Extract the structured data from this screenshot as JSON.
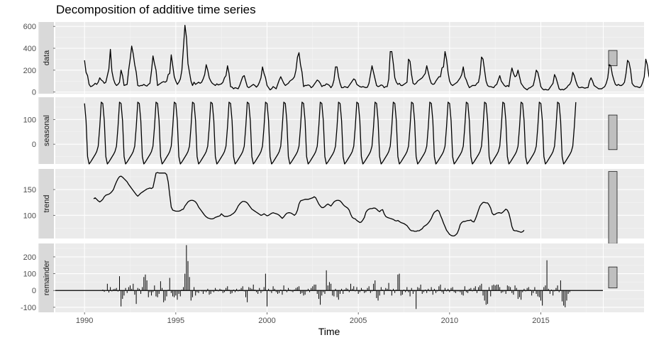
{
  "chart_data": {
    "type": "line",
    "title": "Decomposition of additive time series",
    "xlabel": "Time",
    "xlim": [
      1988.4,
      2018.4
    ],
    "x_ticks": [
      1990,
      1995,
      2000,
      2005,
      2010,
      2015
    ],
    "x_tick_labels": [
      "1990",
      "1995",
      "2000",
      "2005",
      "2010",
      "2015"
    ],
    "grid": true,
    "panels": [
      {
        "name": "data",
        "ylim": [
          -15,
          640
        ],
        "y_ticks": [
          0,
          200,
          400,
          600
        ],
        "y_tick_labels": [
          "0",
          "200",
          "400",
          "600"
        ],
        "scale_bar": [
          240,
          380
        ],
        "x_start": 1990.0,
        "x_step": 0.0833333,
        "values": [
          290,
          180,
          150,
          70,
          50,
          55,
          65,
          80,
          70,
          90,
          130,
          110,
          100,
          80,
          90,
          150,
          210,
          390,
          190,
          120,
          80,
          60,
          70,
          90,
          200,
          150,
          60,
          65,
          70,
          200,
          300,
          420,
          350,
          250,
          180,
          60,
          55,
          60,
          60,
          70,
          60,
          55,
          70,
          80,
          190,
          330,
          260,
          200,
          60,
          70,
          80,
          90,
          95,
          90,
          100,
          160,
          170,
          340,
          240,
          140,
          100,
          70,
          90,
          120,
          200,
          400,
          610,
          500,
          260,
          180,
          100,
          60,
          90,
          70,
          80,
          90,
          80,
          90,
          120,
          160,
          250,
          200,
          130,
          100,
          80,
          70,
          60,
          75,
          65,
          70,
          75,
          90,
          130,
          150,
          240,
          170,
          50,
          45,
          30,
          40,
          35,
          30,
          60,
          100,
          140,
          150,
          100,
          50,
          40,
          50,
          60,
          70,
          60,
          45,
          60,
          90,
          130,
          230,
          170,
          130,
          60,
          40,
          20,
          30,
          50,
          40,
          30,
          70,
          110,
          140,
          110,
          80,
          60,
          70,
          80,
          100,
          110,
          120,
          140,
          200,
          320,
          360,
          250,
          180,
          50,
          60,
          60,
          65,
          60,
          40,
          50,
          70,
          90,
          110,
          100,
          80,
          50,
          60,
          60,
          75,
          70,
          60,
          40,
          60,
          110,
          230,
          230,
          140,
          80,
          40,
          40,
          50,
          45,
          40,
          60,
          80,
          100,
          120,
          110,
          70,
          60,
          50,
          45,
          50,
          45,
          40,
          45,
          80,
          160,
          240,
          180,
          120,
          60,
          50,
          55,
          65,
          60,
          40,
          50,
          50,
          120,
          370,
          370,
          260,
          130,
          90,
          70,
          80,
          60,
          60,
          70,
          80,
          90,
          300,
          280,
          160,
          80,
          70,
          80,
          100,
          110,
          120,
          130,
          150,
          170,
          240,
          180,
          120,
          80,
          70,
          75,
          100,
          120,
          140,
          140,
          220,
          230,
          370,
          300,
          180,
          100,
          70,
          60,
          70,
          80,
          90,
          110,
          130,
          160,
          230,
          140,
          110,
          70,
          40,
          50,
          60,
          60,
          60,
          80,
          90,
          160,
          320,
          300,
          200,
          100,
          60,
          50,
          50,
          45,
          40,
          60,
          70,
          110,
          150,
          100,
          80,
          60,
          50,
          60,
          50,
          150,
          220,
          170,
          140,
          150,
          200,
          140,
          80,
          60,
          40,
          30,
          20,
          35,
          40,
          50,
          60,
          120,
          200,
          180,
          120,
          50,
          30,
          20,
          25,
          20,
          20,
          40,
          60,
          80,
          160,
          130,
          80,
          30,
          20,
          25,
          20,
          30,
          40,
          60,
          70,
          100,
          180,
          150,
          100,
          60,
          40,
          40,
          45,
          40,
          35,
          40,
          40,
          100,
          130,
          100,
          60,
          50,
          40,
          30,
          30,
          30,
          40,
          50,
          80,
          130,
          250,
          240,
          160,
          110,
          70,
          60,
          70,
          60,
          60,
          70,
          90,
          170,
          290,
          270,
          200,
          80,
          60,
          50,
          50,
          45,
          40,
          55,
          90,
          140,
          300,
          250,
          150,
          100,
          70,
          40,
          40,
          45,
          50,
          60,
          40,
          40,
          50,
          40,
          30,
          60,
          80,
          120,
          170
        ]
      },
      {
        "name": "seasonal",
        "ylim": [
          -80,
          190
        ],
        "y_ticks": [
          0,
          100
        ],
        "y_tick_labels": [
          "0",
          "100"
        ],
        "scale_bar": [
          -22,
          118
        ],
        "x_start": 1990.0,
        "x_step": 0.0833333,
        "cycle": [
          165,
          95,
          -50,
          -80,
          -72,
          -62,
          -52,
          -42,
          -30,
          -8,
          70,
          170
        ],
        "n_points": 324
      },
      {
        "name": "trend",
        "ylim": [
          55,
          190
        ],
        "y_ticks": [
          100,
          150
        ],
        "y_tick_labels": [
          "100",
          "150"
        ],
        "scale_bar": [
          45,
          185
        ],
        "x_start": 1990.5,
        "x_step": 0.0833333,
        "values": [
          132,
          134,
          131,
          128,
          126,
          128,
          131,
          136,
          139,
          140,
          141,
          143,
          146,
          150,
          158,
          165,
          171,
          175,
          176,
          174,
          171,
          168,
          165,
          160,
          156,
          152,
          148,
          144,
          140,
          137,
          140,
          143,
          145,
          147,
          149,
          151,
          152,
          153,
          152,
          154,
          168,
          182,
          183,
          182,
          182,
          182,
          182,
          182,
          179,
          165,
          140,
          116,
          110,
          109,
          108,
          108,
          108,
          109,
          111,
          112,
          118,
          122,
          126,
          128,
          129,
          129,
          128,
          126,
          122,
          116,
          112,
          108,
          104,
          100,
          97,
          95,
          94,
          93,
          93,
          94,
          96,
          97,
          98,
          99,
          103,
          100,
          98,
          98,
          98,
          99,
          100,
          102,
          104,
          107,
          112,
          118,
          122,
          125,
          127,
          127,
          126,
          124,
          120,
          116,
          112,
          110,
          108,
          106,
          104,
          102,
          100,
          101,
          103,
          101,
          99,
          100,
          102,
          104,
          105,
          104,
          103,
          102,
          100,
          97,
          94,
          97,
          101,
          104,
          105,
          105,
          104,
          102,
          100,
          103,
          110,
          122,
          128,
          129,
          130,
          131,
          131,
          131,
          132,
          133,
          134,
          136,
          134,
          128,
          122,
          118,
          115,
          115,
          117,
          120,
          122,
          120,
          118,
          122,
          126,
          128,
          129,
          129,
          128,
          125,
          121,
          118,
          116,
          114,
          110,
          102,
          96,
          94,
          93,
          90,
          88,
          86,
          87,
          91,
          96,
          106,
          110,
          112,
          113,
          113,
          114,
          114,
          112,
          109,
          107,
          110,
          111,
          103,
          98,
          96,
          95,
          94,
          93,
          92,
          90,
          89,
          90,
          88,
          86,
          85,
          84,
          82,
          80,
          76,
          72,
          70,
          70,
          69,
          69,
          70,
          70,
          72,
          74,
          78,
          80,
          82,
          85,
          89,
          94,
          101,
          106,
          108,
          110,
          108,
          100,
          93,
          85,
          78,
          71,
          67,
          63,
          61,
          60,
          60,
          62,
          65,
          72,
          82,
          86,
          88,
          88,
          89,
          90,
          90,
          91,
          88,
          87,
          93,
          101,
          110,
          118,
          122,
          125,
          125,
          124,
          124,
          120,
          114,
          104,
          101,
          102,
          104,
          105,
          105,
          104,
          106,
          109,
          112,
          110,
          104,
          92,
          78,
          71,
          70,
          70,
          69,
          68,
          67,
          68,
          71
        ]
      },
      {
        "name": "remainder",
        "ylim": [
          -130,
          280
        ],
        "y_ticks": [
          -100,
          0,
          100,
          200
        ],
        "y_tick_labels": [
          "-100",
          "0",
          "100",
          "200"
        ],
        "scale_bar": [
          15,
          140
        ],
        "x_start": 1990.0,
        "x_step": 0.0833333,
        "values": [
          0,
          0,
          0,
          0,
          0,
          0,
          0,
          0,
          0,
          0,
          0,
          0,
          5,
          -8,
          0,
          40,
          -12,
          20,
          -5,
          8,
          10,
          15,
          -6,
          85,
          -95,
          -50,
          -30,
          15,
          -15,
          20,
          30,
          10,
          40,
          -25,
          -80,
          15,
          10,
          -20,
          20,
          80,
          95,
          60,
          -40,
          -10,
          -30,
          -10,
          30,
          -35,
          -40,
          -20,
          55,
          15,
          -70,
          -60,
          -35,
          5,
          75,
          -15,
          -35,
          -40,
          -30,
          -55,
          -20,
          -35,
          5,
          20,
          100,
          270,
          175,
          80,
          -60,
          -40,
          20,
          -30,
          -10,
          -15,
          0,
          -5,
          -20,
          -5,
          -10,
          10,
          -25,
          -20,
          -5,
          -10,
          15,
          5,
          -5,
          10,
          5,
          -15,
          -10,
          15,
          25,
          5,
          -20,
          -15,
          5,
          -10,
          10,
          -5,
          5,
          15,
          25,
          -5,
          -40,
          -70,
          20,
          15,
          10,
          35,
          5,
          -10,
          -20,
          15,
          -15,
          -5,
          20,
          100,
          -95,
          10,
          -5,
          -15,
          25,
          10,
          -10,
          -20,
          -15,
          5,
          -25,
          30,
          5,
          -10,
          15,
          5,
          -5,
          -10,
          5,
          15,
          20,
          25,
          -20,
          -15,
          -30,
          -25,
          -5,
          10,
          -10,
          15,
          25,
          35,
          35,
          -20,
          -50,
          -85,
          -30,
          -10,
          -20,
          120,
          30,
          50,
          40,
          -30,
          -35,
          10,
          -40,
          -55,
          -20,
          10,
          -20,
          5,
          15,
          10,
          -10,
          40,
          10,
          25,
          -5,
          20,
          -20,
          -10,
          15,
          5,
          -15,
          -10,
          15,
          25,
          -15,
          -5,
          40,
          60,
          -45,
          -60,
          -30,
          20,
          5,
          -25,
          15,
          10,
          45,
          5,
          -30,
          10,
          -15,
          5,
          95,
          100,
          -30,
          -25,
          5,
          -10,
          20,
          -10,
          -35,
          15,
          -20,
          -5,
          -110,
          20,
          15,
          35,
          -20,
          -10,
          5,
          -15,
          10,
          -5,
          20,
          -25,
          10,
          -15,
          -5,
          25,
          35,
          -10,
          -20,
          15,
          -5,
          10,
          -10,
          15,
          20,
          -10,
          -15,
          -5,
          -5,
          -10,
          -25,
          -30,
          25,
          -10,
          -15,
          10,
          15,
          -5,
          15,
          25,
          -15,
          20,
          30,
          40,
          -30,
          -60,
          -85,
          -80,
          20,
          -35,
          30,
          35,
          30,
          35,
          35,
          20,
          -15,
          -10,
          -5,
          -20,
          30,
          25,
          20,
          -15,
          -25,
          30,
          15,
          -50,
          -40,
          -55,
          -10,
          10,
          -5,
          15,
          20,
          5,
          -30,
          -15,
          20,
          -20,
          -35,
          -40,
          -60,
          -90,
          20,
          30,
          180,
          10,
          -20,
          5,
          -30,
          -5,
          15,
          30,
          -10,
          60,
          -65,
          -90,
          -100,
          -60,
          -20,
          -10
        ]
      }
    ]
  }
}
